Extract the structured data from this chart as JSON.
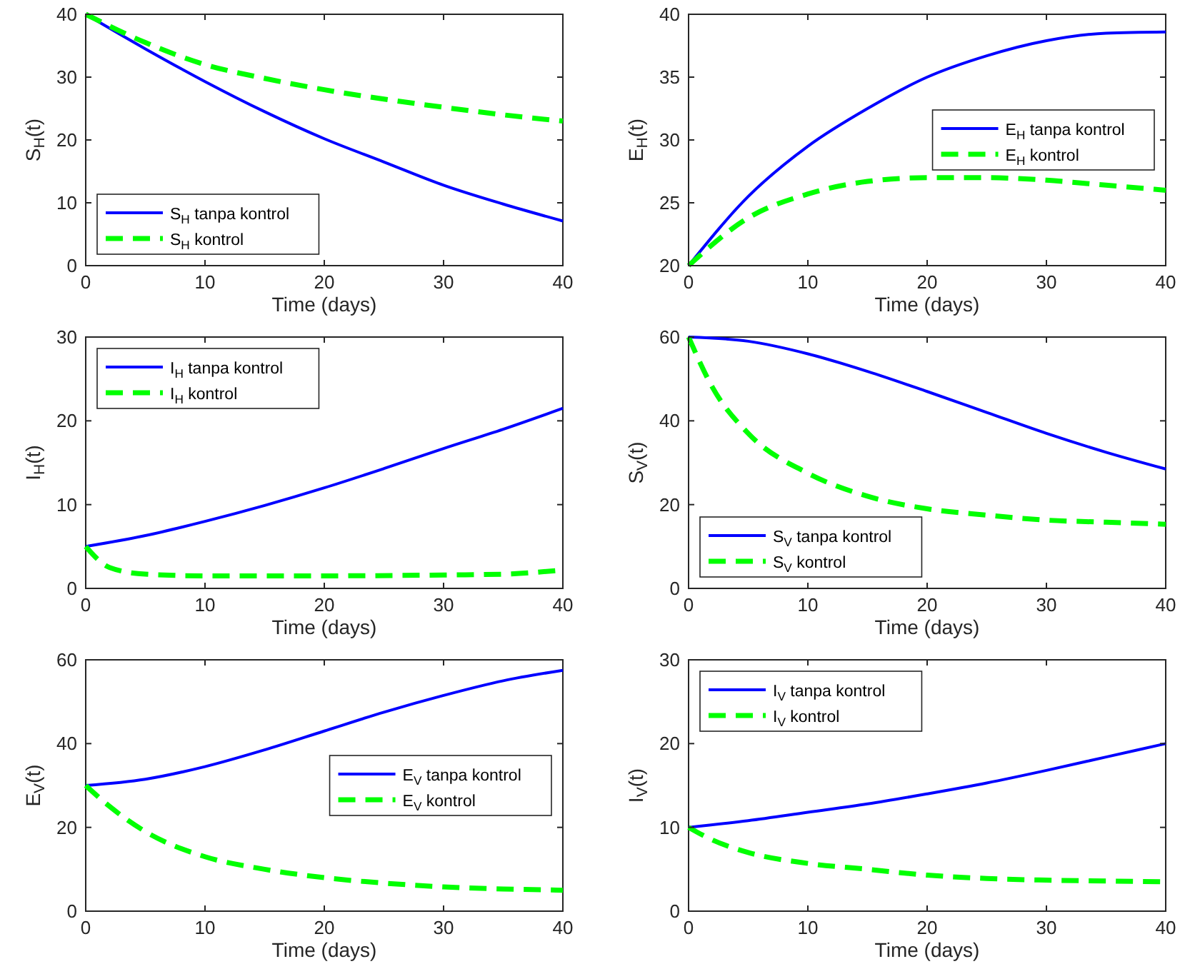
{
  "chart_data": [
    {
      "type": "line",
      "xlabel": "Time (days)",
      "ylabel": "S$_{H}$(t)",
      "xlim": [
        0,
        40
      ],
      "xticks": [
        0,
        10,
        20,
        30,
        40
      ],
      "ylim": [
        0,
        40
      ],
      "yticks": [
        0,
        10,
        20,
        30,
        40
      ],
      "legend": "bottom left",
      "grid": false,
      "series": [
        {
          "name": "S$_{H}$ tanpa kontrol",
          "color": "#0000ff",
          "line_style": "solid",
          "x": [
            0,
            5,
            10,
            15,
            20,
            25,
            30,
            35,
            40
          ],
          "values": [
            40,
            34.5,
            29.3,
            24.5,
            20.2,
            16.5,
            12.8,
            9.8,
            7.1
          ]
        },
        {
          "name": "S$_{H}$ kontrol",
          "color": "#00ff00",
          "line_style": "dashed",
          "x": [
            0,
            5,
            10,
            15,
            20,
            25,
            30,
            35,
            40
          ],
          "values": [
            40,
            35.5,
            32,
            29.8,
            28,
            26.5,
            25.2,
            24,
            23
          ]
        }
      ]
    },
    {
      "type": "line",
      "xlabel": "Time (days)",
      "ylabel": "E$_{H}$(t)",
      "xlim": [
        0,
        40
      ],
      "xticks": [
        0,
        10,
        20,
        30,
        40
      ],
      "ylim": [
        20,
        40
      ],
      "yticks": [
        20,
        25,
        30,
        35,
        40
      ],
      "legend": "right",
      "grid": false,
      "series": [
        {
          "name": "E$_{H}$ tanpa kontrol",
          "color": "#0000ff",
          "line_style": "solid",
          "x": [
            0,
            5,
            10,
            15,
            20,
            25,
            30,
            35,
            40
          ],
          "values": [
            20,
            25.5,
            29.5,
            32.5,
            35,
            36.7,
            37.9,
            38.5,
            38.6
          ]
        },
        {
          "name": "E$_{H}$ kontrol",
          "color": "#00ff00",
          "line_style": "dashed",
          "x": [
            0,
            5,
            10,
            15,
            20,
            25,
            30,
            35,
            40
          ],
          "values": [
            20,
            23.8,
            25.7,
            26.7,
            27,
            27,
            26.8,
            26.4,
            26
          ]
        }
      ]
    },
    {
      "type": "line",
      "xlabel": "Time (days)",
      "ylabel": "I$_{H}$(t)",
      "xlim": [
        0,
        40
      ],
      "xticks": [
        0,
        10,
        20,
        30,
        40
      ],
      "ylim": [
        0,
        30
      ],
      "yticks": [
        0,
        10,
        20,
        30
      ],
      "legend": "top left",
      "grid": false,
      "series": [
        {
          "name": "I$_{H}$ tanpa kontrol",
          "color": "#0000ff",
          "line_style": "solid",
          "x": [
            0,
            5,
            10,
            15,
            20,
            25,
            30,
            35,
            40
          ],
          "values": [
            5,
            6.3,
            8,
            9.9,
            12,
            14.3,
            16.7,
            19,
            21.5
          ]
        },
        {
          "name": "I$_{H}$ kontrol",
          "color": "#00ff00",
          "line_style": "dashed",
          "x": [
            0,
            2,
            5,
            10,
            20,
            30,
            35,
            40
          ],
          "values": [
            5,
            2.5,
            1.7,
            1.5,
            1.5,
            1.6,
            1.7,
            2.2
          ]
        }
      ]
    },
    {
      "type": "line",
      "xlabel": "Time (days)",
      "ylabel": "S$_{V}$(t)",
      "xlim": [
        0,
        40
      ],
      "xticks": [
        0,
        10,
        20,
        30,
        40
      ],
      "ylim": [
        0,
        60
      ],
      "yticks": [
        0,
        20,
        40,
        60
      ],
      "legend": "bottom left",
      "grid": false,
      "series": [
        {
          "name": "S$_{V}$ tanpa kontrol",
          "color": "#0000ff",
          "line_style": "solid",
          "x": [
            0,
            5,
            10,
            15,
            20,
            25,
            30,
            35,
            40
          ],
          "values": [
            60,
            59,
            56,
            51.8,
            47,
            42,
            37,
            32.5,
            28.5
          ]
        },
        {
          "name": "S$_{V}$ kontrol",
          "color": "#00ff00",
          "line_style": "dashed",
          "x": [
            0,
            2,
            5,
            10,
            15,
            20,
            25,
            30,
            35,
            40
          ],
          "values": [
            60,
            48,
            37,
            27.5,
            22,
            19,
            17.5,
            16.3,
            15.8,
            15.3
          ]
        }
      ]
    },
    {
      "type": "line",
      "xlabel": "Time (days)",
      "ylabel": "E$_{V}$(t)",
      "xlim": [
        0,
        40
      ],
      "xticks": [
        0,
        10,
        20,
        30,
        40
      ],
      "ylim": [
        0,
        60
      ],
      "yticks": [
        0,
        20,
        40,
        60
      ],
      "legend": "right",
      "grid": false,
      "series": [
        {
          "name": "E$_{V}$ tanpa kontrol",
          "color": "#0000ff",
          "line_style": "solid",
          "x": [
            0,
            5,
            10,
            15,
            20,
            25,
            30,
            35,
            40
          ],
          "values": [
            30,
            31.5,
            34.5,
            38.5,
            43,
            47.5,
            51.5,
            55,
            57.5
          ]
        },
        {
          "name": "E$_{V}$ kontrol",
          "color": "#00ff00",
          "line_style": "dashed",
          "x": [
            0,
            2,
            5,
            10,
            15,
            20,
            25,
            30,
            35,
            40
          ],
          "values": [
            30,
            25,
            19,
            13,
            10,
            8,
            6.7,
            5.8,
            5.3,
            5
          ]
        }
      ]
    },
    {
      "type": "line",
      "xlabel": "Time (days)",
      "ylabel": "I$_{V}$(t)",
      "xlim": [
        0,
        40
      ],
      "xticks": [
        0,
        10,
        20,
        30,
        40
      ],
      "ylim": [
        0,
        30
      ],
      "yticks": [
        0,
        10,
        20,
        30
      ],
      "legend": "top left",
      "grid": false,
      "series": [
        {
          "name": "I$_{V}$ tanpa kontrol",
          "color": "#0000ff",
          "line_style": "solid",
          "x": [
            0,
            5,
            10,
            15,
            20,
            25,
            30,
            35,
            40
          ],
          "values": [
            10,
            10.8,
            11.8,
            12.8,
            14,
            15.3,
            16.8,
            18.4,
            20
          ]
        },
        {
          "name": "I$_{V}$ kontrol",
          "color": "#00ff00",
          "line_style": "dashed",
          "x": [
            0,
            2,
            5,
            10,
            15,
            20,
            25,
            30,
            35,
            40
          ],
          "values": [
            10,
            8.5,
            7,
            5.7,
            5,
            4.3,
            3.9,
            3.7,
            3.6,
            3.5
          ]
        }
      ]
    }
  ]
}
